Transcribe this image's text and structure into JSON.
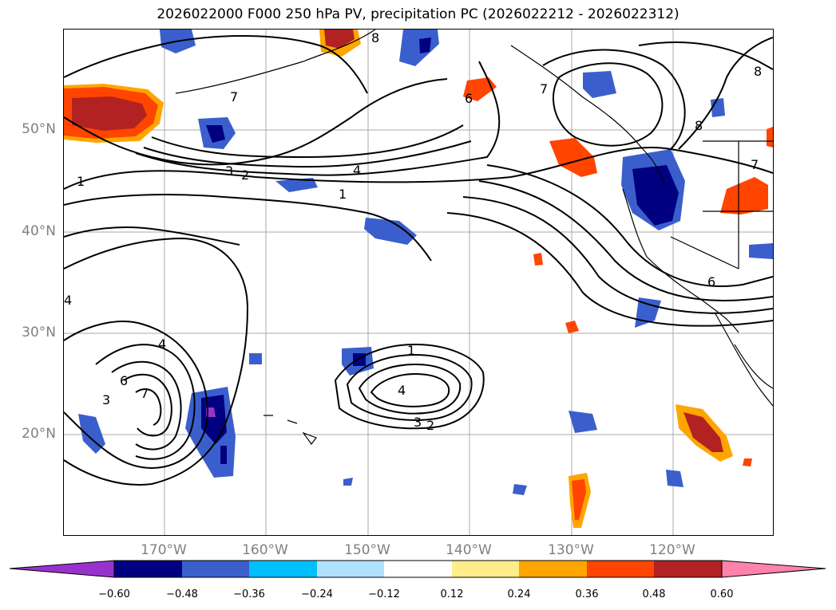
{
  "title": "2026022000 F000 250 hPa PV, precipitation PC (2026022212 - 2026022312)",
  "map": {
    "projection": "cylindrical",
    "lon_range_deg": [
      -180,
      -110
    ],
    "lat_range_deg": [
      10,
      60
    ],
    "lat_labels": [
      {
        "lat": 50,
        "text": "50°N"
      },
      {
        "lat": 40,
        "text": "40°N"
      },
      {
        "lat": 30,
        "text": "30°N"
      },
      {
        "lat": 20,
        "text": "20°N"
      }
    ],
    "lon_labels": [
      {
        "lon": -170,
        "text": "170°W"
      },
      {
        "lon": -160,
        "text": "160°W"
      },
      {
        "lon": -150,
        "text": "150°W"
      },
      {
        "lon": -140,
        "text": "140°W"
      },
      {
        "lon": -130,
        "text": "130°W"
      },
      {
        "lon": -120,
        "text": "120°W"
      }
    ],
    "pv_contour_labels": [
      "1",
      "2",
      "3",
      "4",
      "6",
      "7",
      "8"
    ]
  },
  "colorbar": {
    "colors": [
      "#9932cc",
      "#000080",
      "#3a5fcd",
      "#00bfff",
      "#b0e2ff",
      "#ffffff",
      "#ffec8b",
      "#ffa500",
      "#ff4500",
      "#b22222",
      "#ff82ab"
    ],
    "ticks": [
      "−0.60",
      "−0.48",
      "−0.36",
      "−0.24",
      "−0.12",
      "0.12",
      "0.24",
      "0.36",
      "0.48",
      "0.60"
    ]
  }
}
